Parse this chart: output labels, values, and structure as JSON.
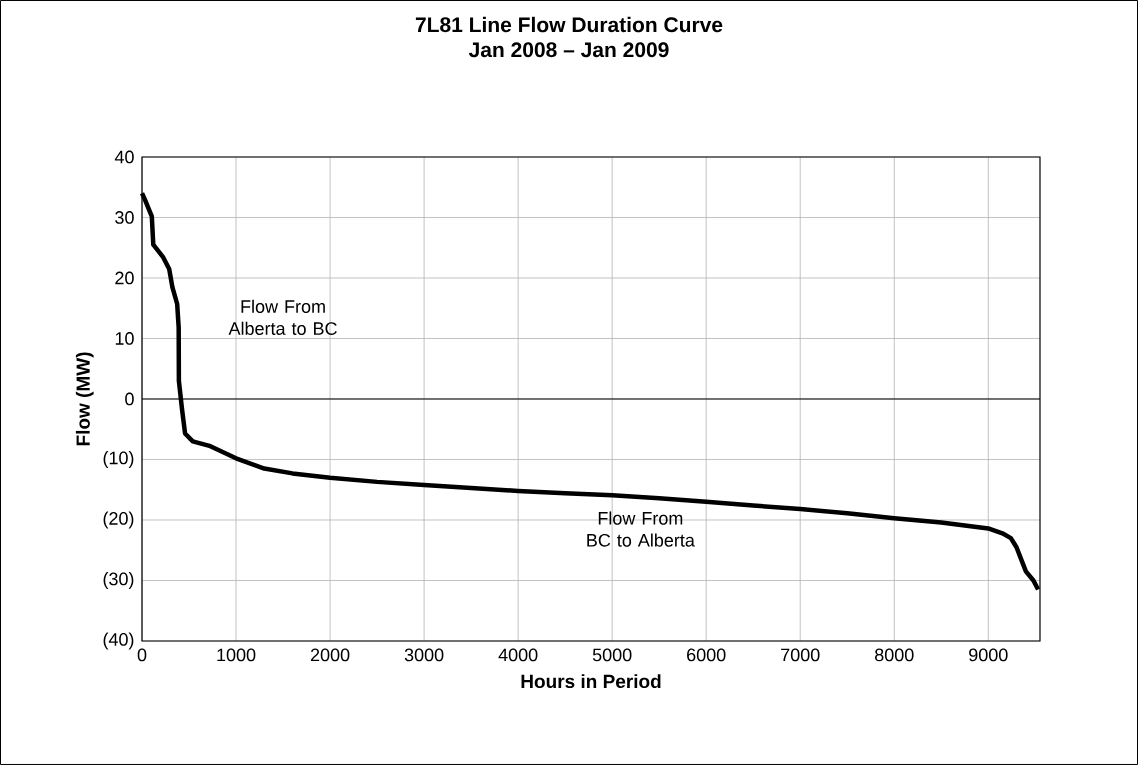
{
  "chart_data": {
    "type": "line",
    "title": "7L81 Line Flow Duration Curve",
    "subtitle": "Jan 2008 – Jan 2009",
    "xlabel": "Hours in Period",
    "ylabel": "Flow (MW)",
    "x": [
      0,
      30,
      104,
      120,
      222,
      289,
      323,
      374,
      390,
      392,
      424,
      458,
      540,
      727,
      1000,
      1300,
      1600,
      2000,
      2500,
      3000,
      3500,
      4000,
      4500,
      5000,
      5500,
      6000,
      6500,
      7000,
      7500,
      8000,
      8500,
      9000,
      9150,
      9240,
      9300,
      9350,
      9400,
      9480,
      9530
    ],
    "series": [
      {
        "color": "#000000",
        "values": [
          34,
          33,
          30.2,
          25.5,
          23.5,
          21.5,
          18.5,
          15.7,
          11.8,
          3,
          -1.5,
          -5.7,
          -7,
          -7.8,
          -9.8,
          -11.5,
          -12.3,
          -13,
          -13.7,
          -14.2,
          -14.7,
          -15.2,
          -15.6,
          -15.9,
          -16.4,
          -17,
          -17.6,
          -18.2,
          -18.9,
          -19.7,
          -20.4,
          -21.4,
          -22.2,
          -23,
          -24.5,
          -26.5,
          -28.5,
          -30,
          -31.5
        ]
      }
    ],
    "xlim": [
      0,
      9550
    ],
    "xticks": [
      0,
      1000,
      2000,
      3000,
      4000,
      5000,
      6000,
      7000,
      8000,
      9000
    ],
    "ylim": [
      -40,
      40
    ],
    "yticks": [
      {
        "value": -40,
        "label": "(40)"
      },
      {
        "value": -30,
        "label": "(30)"
      },
      {
        "value": -20,
        "label": "(20)"
      },
      {
        "value": -10,
        "label": "(10)"
      },
      0,
      10,
      20,
      30,
      40
    ],
    "grid": true,
    "line_style": "solid",
    "ref_lines": [
      {
        "axis": "y",
        "value": 0,
        "color": "#000000"
      }
    ],
    "annotations": [
      "Flow From Alberta to BC",
      "Flow From BC to Alberta"
    ]
  }
}
